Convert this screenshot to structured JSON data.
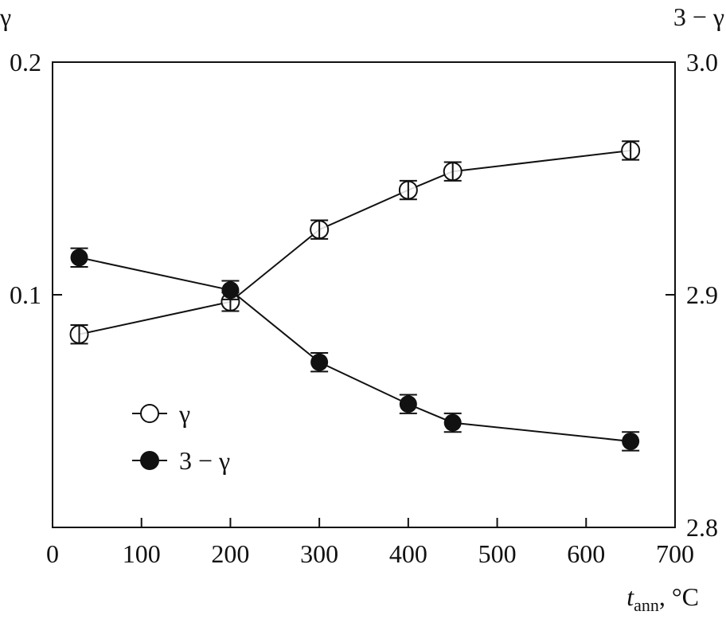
{
  "chart_data": {
    "type": "line",
    "title": "",
    "xlabel": "t",
    "xlabel_sub": "ann",
    "xlabel_unit": ", °C",
    "ylabel_left": "γ",
    "ylabel_right": "3 − γ",
    "xlim": [
      0,
      700
    ],
    "ylim_left": [
      0.0,
      0.2
    ],
    "ylim_right": [
      2.8,
      3.0
    ],
    "x_ticks": [
      "0",
      "100",
      "200",
      "300",
      "400",
      "500",
      "600",
      "700"
    ],
    "x_tick_values": [
      0,
      100,
      200,
      300,
      400,
      500,
      600,
      700
    ],
    "y_left_ticks": [
      "0.1",
      "0.2"
    ],
    "y_left_tick_values": [
      0.1,
      0.2
    ],
    "y_right_ticks": [
      "2.8",
      "2.9",
      "3.0"
    ],
    "y_right_tick_values": [
      2.8,
      2.9,
      3.0
    ],
    "grid": false,
    "legend_position": "lower-left",
    "series": [
      {
        "name": "γ",
        "axis": "left",
        "marker": "open-circle",
        "x": [
          30,
          200,
          300,
          400,
          450,
          650
        ],
        "values": [
          0.083,
          0.097,
          0.128,
          0.145,
          0.153,
          0.162
        ],
        "error": 0.004
      },
      {
        "name": "3 − γ",
        "axis": "right",
        "marker": "filled-circle",
        "x": [
          30,
          200,
          300,
          400,
          450,
          650
        ],
        "values": [
          2.916,
          2.902,
          2.871,
          2.853,
          2.845,
          2.837
        ],
        "error": 0.004
      }
    ]
  }
}
